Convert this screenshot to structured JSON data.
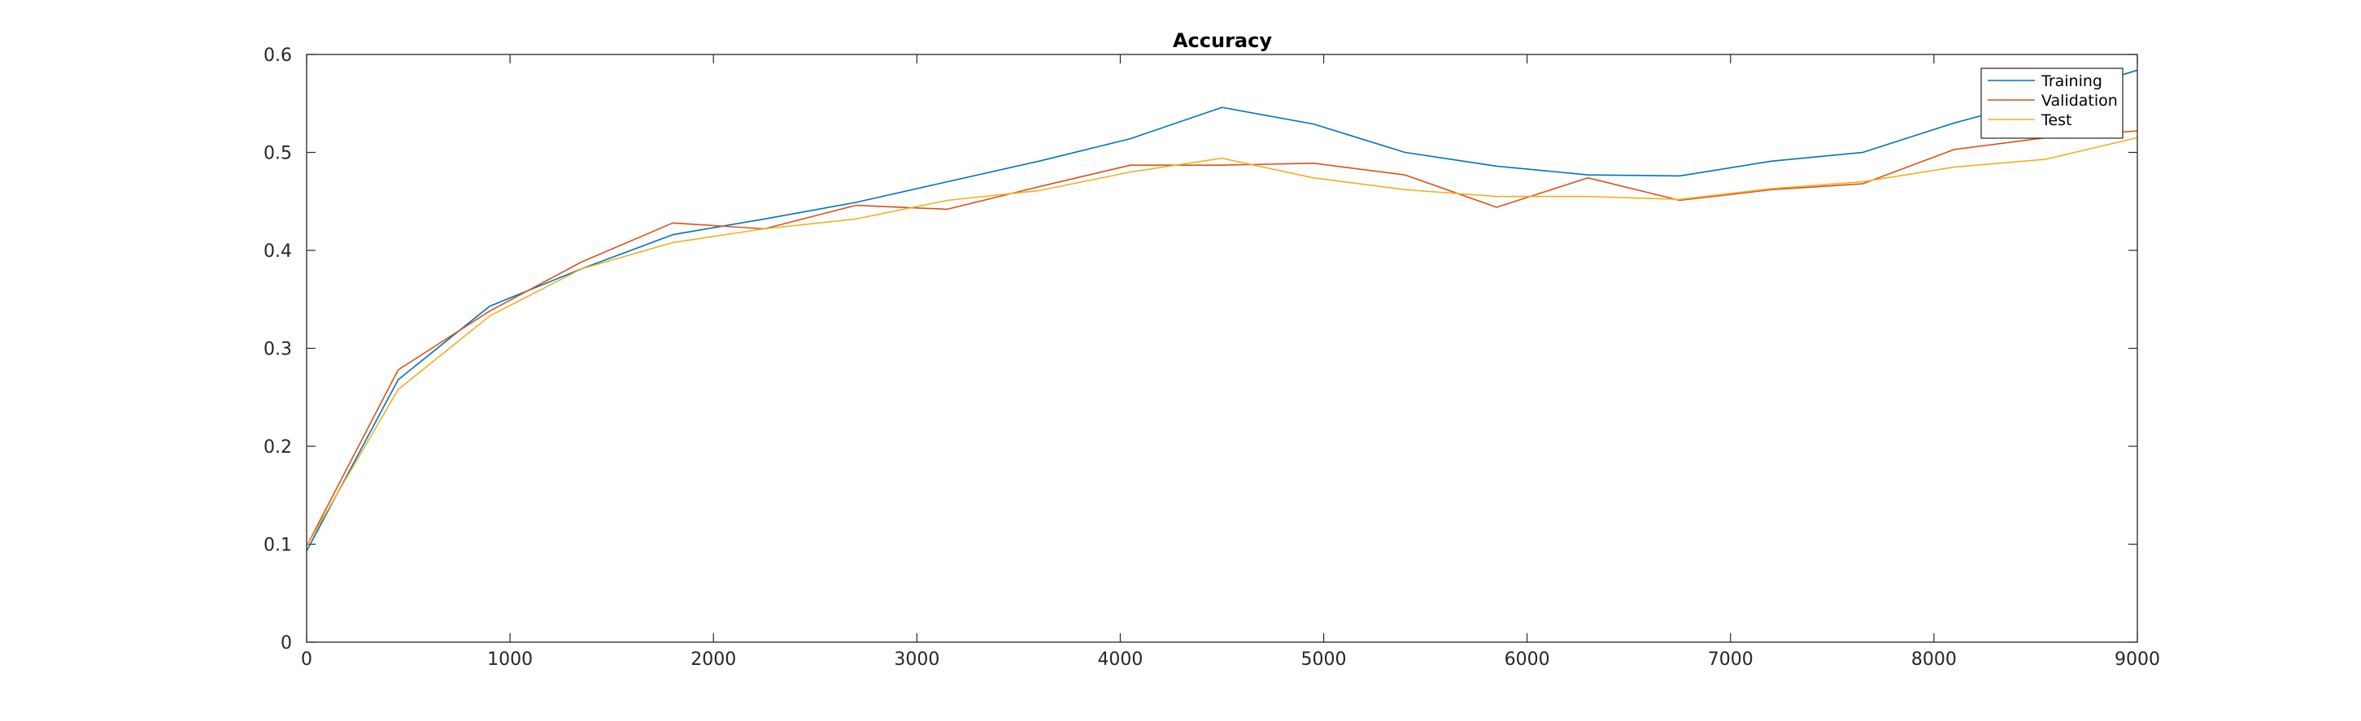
{
  "chart_data": {
    "type": "line",
    "title": "Accuracy",
    "xlabel": "",
    "ylabel": "",
    "xlim": [
      0,
      9000
    ],
    "ylim": [
      0,
      0.6
    ],
    "xticks": [
      0,
      1000,
      2000,
      3000,
      4000,
      5000,
      6000,
      7000,
      8000,
      9000
    ],
    "yticks": [
      0,
      0.1,
      0.2,
      0.3,
      0.4,
      0.5,
      0.6
    ],
    "grid": false,
    "legend": "top-right",
    "series": [
      {
        "name": "Training",
        "color": "#0072BD",
        "x": [
          0,
          450,
          900,
          1350,
          1800,
          2250,
          2700,
          3150,
          3600,
          4050,
          4500,
          4950,
          5400,
          5850,
          6300,
          6750,
          7200,
          7650,
          8100,
          8550,
          9000
        ],
        "y": [
          0.093,
          0.268,
          0.343,
          0.381,
          0.416,
          0.432,
          0.449,
          0.47,
          0.491,
          0.514,
          0.546,
          0.529,
          0.5,
          0.486,
          0.477,
          0.476,
          0.491,
          0.5,
          0.53,
          0.555,
          0.584
        ]
      },
      {
        "name": "Validation",
        "color": "#D95319",
        "x": [
          0,
          450,
          900,
          1350,
          1800,
          2250,
          2700,
          3150,
          3600,
          4050,
          4500,
          4950,
          5400,
          5850,
          6300,
          6750,
          7200,
          7650,
          8100,
          8550,
          9000
        ],
        "y": [
          0.098,
          0.278,
          0.338,
          0.388,
          0.428,
          0.422,
          0.446,
          0.442,
          0.465,
          0.487,
          0.487,
          0.489,
          0.477,
          0.444,
          0.474,
          0.451,
          0.462,
          0.468,
          0.503,
          0.515,
          0.522
        ]
      },
      {
        "name": "Test",
        "color": "#EDB120",
        "x": [
          0,
          450,
          900,
          1350,
          1800,
          2250,
          2700,
          3150,
          3600,
          4050,
          4500,
          4950,
          5400,
          5850,
          6300,
          6750,
          7200,
          7650,
          8100,
          8550,
          9000
        ],
        "y": [
          0.098,
          0.258,
          0.333,
          0.381,
          0.408,
          0.422,
          0.432,
          0.451,
          0.461,
          0.48,
          0.494,
          0.474,
          0.462,
          0.455,
          0.455,
          0.452,
          0.463,
          0.47,
          0.485,
          0.493,
          0.515
        ]
      }
    ]
  }
}
